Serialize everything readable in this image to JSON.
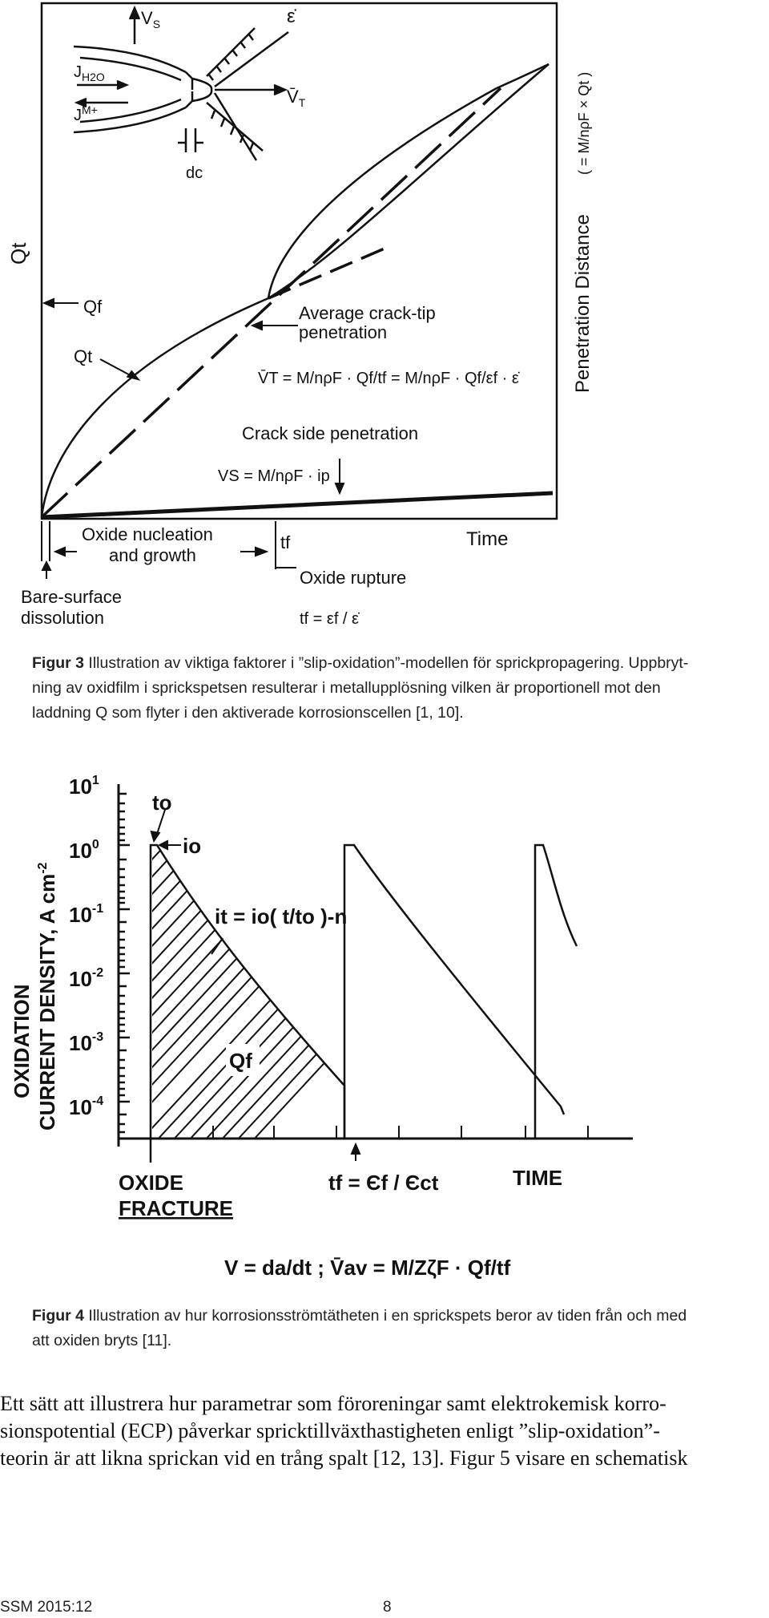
{
  "figure3": {
    "axis_left": "Qt",
    "axis_right": "Penetration Distance",
    "axis_right_formula": "( = M/nρF × Qt )",
    "time_label": "Time",
    "label_vs": "V",
    "label_vs_sub": "S",
    "label_eps_dot": "ε̇",
    "label_vt": "V̄",
    "label_vt_sub": "T",
    "label_jh2o": "J",
    "label_jh2o_sub": "H2O",
    "label_jm": "J",
    "label_jm_sub": "M+",
    "label_dc": "dc",
    "label_qf": "Qf",
    "label_qt_curve": "Qt",
    "avg_crack_tip_line1": "Average crack-tip",
    "avg_crack_tip_line2": "penetration",
    "vt_formula": "V̄T = M/nρF · Qf/tf = M/nρF · Qf/εf · ε̇",
    "crack_side": "Crack side penetration",
    "vs_formula": "VS = M/nρF · ip",
    "oxide_nucleation_line1": "Oxide nucleation",
    "oxide_nucleation_line2": "and growth",
    "tf_label": "tf",
    "oxide_rupture": "Oxide rupture",
    "tf_formula": "tf = εf / ε̇",
    "bare_surface_line1": "Bare-surface",
    "bare_surface_line2": "dissolution"
  },
  "caption3": {
    "label": "Figur 3",
    "lines": [
      " Illustration av viktiga faktorer i ”slip-oxidation”-modellen för sprickpropagering. Uppbryt-",
      "ning av oxidfilm i sprickspetsen resulterar i metallupplösning vilken är proportionell mot den",
      "laddning Q som flyter i den aktiverade korrosionscellen [1, 10]."
    ]
  },
  "figure4": {
    "ylabel_line1": "OXIDATION",
    "ylabel_line2": "CURRENT DENSITY, A cm",
    "ylabel_exp": "-2",
    "tick_labels": [
      "10",
      "10",
      "10",
      "10",
      "10",
      "10"
    ],
    "tick_exps": [
      "1",
      "0",
      "-1",
      "-2",
      "-3",
      "-4"
    ],
    "t0_label": "to",
    "i0_label": "io",
    "it_formula": "it = io( t/to )-n",
    "qf_label": "Qf",
    "oxide_fracture_line1": "OXIDE",
    "oxide_fracture_line2": "FRACTURE",
    "tf_formula": "tf = Єf / Єct",
    "time_label": "TIME",
    "velocity_formula": "V = da/dt ;  V̄av = M/ZζF · Qf/tf"
  },
  "caption4": {
    "label": "Figur 4",
    "lines": [
      " Illustration av hur korrosionsströmtätheten i en sprickspets beror av tiden från och med",
      "att oxiden bryts [11]."
    ]
  },
  "body": {
    "lines": [
      "Ett sätt att illustrera hur parametrar som föroreningar samt elektrokemisk korro-",
      "sionspotential (ECP) påverkar spricktillväxthastigheten enligt ”slip-oxidation”-",
      "teorin är att likna sprickan vid en trång spalt [12, 13]. Figur 5 visare en schematisk"
    ]
  },
  "footer": {
    "left": "SSM 2015:12",
    "page": "8"
  }
}
